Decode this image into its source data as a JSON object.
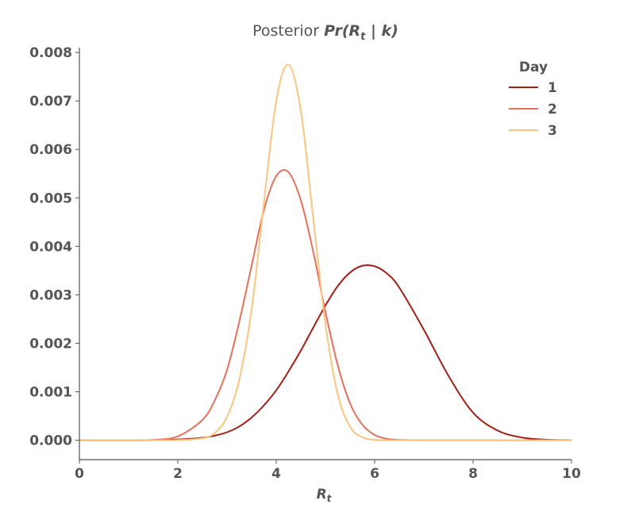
{
  "chart_data": {
    "type": "line",
    "title": "Posterior Pr(R_t | k)",
    "title_parts": {
      "prefix": "Posterior ",
      "math": "Pr(R",
      "sub": "t",
      "math_end": " | k)"
    },
    "xlabel": {
      "main": "R",
      "sub": "t"
    },
    "ylabel": "",
    "xlim": [
      0,
      10
    ],
    "ylim": [
      -0.0004,
      0.0081
    ],
    "x_ticks": [
      {
        "value": 0,
        "label": "0"
      },
      {
        "value": 2,
        "label": "2"
      },
      {
        "value": 4,
        "label": "4"
      },
      {
        "value": 6,
        "label": "6"
      },
      {
        "value": 8,
        "label": "8"
      },
      {
        "value": 10,
        "label": "10"
      }
    ],
    "y_ticks": [
      {
        "value": 0.0,
        "label": "0.000"
      },
      {
        "value": 0.001,
        "label": "0.001"
      },
      {
        "value": 0.002,
        "label": "0.002"
      },
      {
        "value": 0.003,
        "label": "0.003"
      },
      {
        "value": 0.004,
        "label": "0.004"
      },
      {
        "value": 0.005,
        "label": "0.005"
      },
      {
        "value": 0.006,
        "label": "0.006"
      },
      {
        "value": 0.007,
        "label": "0.007"
      },
      {
        "value": 0.008,
        "label": "0.008"
      }
    ],
    "grid": false,
    "legend": {
      "title": "Day",
      "position": "top-right"
    },
    "x": [
      0.0,
      0.5,
      1.0,
      1.5,
      2.0,
      2.5,
      2.75,
      3.0,
      3.25,
      3.5,
      3.75,
      4.0,
      4.25,
      4.5,
      4.75,
      5.0,
      5.25,
      5.5,
      5.75,
      6.0,
      6.25,
      6.5,
      7.0,
      7.5,
      8.0,
      8.5,
      9.0,
      9.5,
      10.0
    ],
    "series": [
      {
        "name": "1",
        "color": "#a31e14",
        "values": [
          0.0,
          0.0,
          0.0,
          1e-06,
          1.5e-05,
          5e-05,
          9.5e-05,
          0.000165,
          0.000285,
          0.00047,
          0.00072,
          0.00103,
          0.00142,
          0.00185,
          0.00232,
          0.00278,
          0.00318,
          0.00346,
          0.0036,
          0.00359,
          0.00344,
          0.00315,
          0.00228,
          0.00133,
          0.00057,
          0.0002,
          5.5e-05,
          1.2e-05,
          2e-06
        ]
      },
      {
        "name": "2",
        "color": "#e6705a",
        "values": [
          0.0,
          0.0,
          0.0,
          8e-06,
          8e-05,
          0.00042,
          0.00082,
          0.00145,
          0.00245,
          0.0036,
          0.00475,
          0.00545,
          0.00553,
          0.00495,
          0.0039,
          0.00265,
          0.00155,
          0.00076,
          0.00032,
          0.00011,
          3e-05,
          8e-06,
          0.0,
          0.0,
          0.0,
          0.0,
          0.0,
          0.0,
          0.0
        ]
      },
      {
        "name": "3",
        "color": "#f9c57f",
        "values": [
          0.0,
          0.0,
          0.0,
          0.0,
          3e-06,
          4e-05,
          0.00015,
          0.00048,
          0.00125,
          0.0027,
          0.0049,
          0.007,
          0.00775,
          0.0068,
          0.0046,
          0.0024,
          0.00095,
          0.00028,
          6e-05,
          1e-05,
          2e-06,
          0.0,
          0.0,
          0.0,
          0.0,
          0.0,
          0.0,
          0.0,
          0.0
        ]
      }
    ]
  }
}
